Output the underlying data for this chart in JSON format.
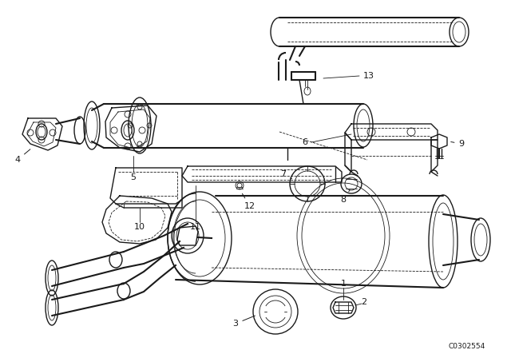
{
  "background_color": "#ffffff",
  "line_color": "#1a1a1a",
  "diagram_code": "C0302554",
  "lw": 1.0,
  "lw_thick": 1.5,
  "lw_thin": 0.6,
  "font_size": 8,
  "font_size_small": 6.5
}
